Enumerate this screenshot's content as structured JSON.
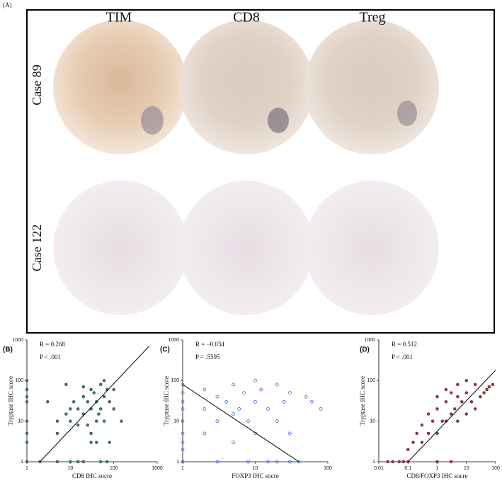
{
  "panel_a": {
    "label": "(A)",
    "columns": [
      "TIM",
      "CD8",
      "Treg"
    ],
    "rows": [
      "Case 89",
      "Case 122"
    ]
  },
  "chart_data": [
    {
      "type": "scatter",
      "panel_label": "(B)",
      "xlabel": "CD8 IHC socre",
      "ylabel": "Tryptase IHC score",
      "annotations": [
        "R = 0.268",
        "P < .001"
      ],
      "xscale": "log",
      "yscale": "log",
      "xlim": [
        1,
        1000
      ],
      "ylim": [
        1,
        1000
      ],
      "xticks": [
        1,
        10,
        100,
        1000
      ],
      "yticks": [
        1,
        10,
        100,
        1000
      ],
      "color": "#2e8b57",
      "filled": true,
      "x": [
        1,
        1,
        1,
        1,
        1,
        1,
        1,
        1,
        2,
        3,
        5,
        5,
        8,
        10,
        10,
        10,
        12,
        15,
        15,
        20,
        20,
        20,
        25,
        30,
        30,
        30,
        35,
        40,
        40,
        50,
        50,
        50,
        60,
        60,
        70,
        80,
        80,
        100,
        100,
        150,
        20,
        30,
        40,
        15,
        60,
        8,
        5,
        25,
        45,
        70
      ],
      "y": [
        100,
        60,
        30,
        10,
        5,
        3,
        1,
        40,
        1,
        30,
        10,
        5,
        15,
        1,
        20,
        10,
        30,
        8,
        20,
        1,
        15,
        40,
        30,
        3,
        20,
        60,
        50,
        10,
        30,
        1,
        20,
        80,
        40,
        100,
        60,
        3,
        30,
        20,
        60,
        10,
        70,
        5,
        3,
        1,
        10,
        80,
        1,
        8,
        15,
        1
      ],
      "trendline": {
        "x": [
          2,
          650
        ],
        "y": [
          1,
          700
        ]
      }
    },
    {
      "type": "scatter",
      "panel_label": "(C)",
      "xlabel": "FOXP3 IHC socre",
      "ylabel": "Tryptase IHC score",
      "annotations": [
        "R = −0.034",
        "P = .5595"
      ],
      "xscale": "log",
      "yscale": "log",
      "xlim": [
        1,
        100
      ],
      "ylim": [
        1,
        1000
      ],
      "xticks": [
        1,
        10,
        100
      ],
      "yticks": [
        1,
        10,
        100,
        1000
      ],
      "color": "#4169e1",
      "filled": false,
      "x": [
        1,
        1,
        1,
        1,
        1,
        1,
        1,
        1,
        1,
        2,
        2,
        2,
        3,
        3,
        3,
        4,
        5,
        5,
        5,
        6,
        7,
        8,
        8,
        10,
        10,
        10,
        12,
        15,
        15,
        20,
        20,
        20,
        25,
        30,
        30,
        30,
        40,
        50,
        60,
        80
      ],
      "y": [
        80,
        50,
        30,
        20,
        10,
        5,
        3,
        2,
        1,
        60,
        20,
        5,
        40,
        10,
        1,
        30,
        80,
        15,
        3,
        20,
        50,
        10,
        1,
        100,
        30,
        5,
        60,
        20,
        1,
        80,
        10,
        1,
        30,
        50,
        5,
        1,
        1,
        40,
        30,
        20
      ],
      "trendline": {
        "x": [
          1,
          40
        ],
        "y": [
          80,
          1
        ]
      }
    },
    {
      "type": "scatter",
      "panel_label": "(D)",
      "xlabel": "CD8/FOXP3 IHC socre",
      "ylabel": "Tryptase IHC score",
      "annotations": [
        "R = 0.512",
        "P < .001"
      ],
      "xscale": "log",
      "yscale": "log",
      "xlim": [
        0.01,
        100
      ],
      "ylim": [
        1,
        1000
      ],
      "xticks": [
        0.01,
        0.1,
        1,
        10,
        100
      ],
      "yticks": [
        1,
        10,
        100,
        1000
      ],
      "color": "#b03040",
      "filled": true,
      "x": [
        0.05,
        0.07,
        0.1,
        0.1,
        0.15,
        0.2,
        0.3,
        0.3,
        0.5,
        0.5,
        0.7,
        1,
        1,
        1,
        1.5,
        2,
        2,
        2,
        3,
        3,
        4,
        5,
        5,
        5,
        7,
        10,
        10,
        10,
        15,
        20,
        20,
        30,
        40,
        50,
        60,
        80,
        0.02,
        0.03,
        1,
        3
      ],
      "y": [
        1,
        1,
        1,
        2,
        3,
        5,
        3,
        8,
        5,
        15,
        10,
        5,
        20,
        40,
        10,
        10,
        30,
        60,
        15,
        50,
        20,
        10,
        40,
        80,
        30,
        15,
        50,
        100,
        30,
        20,
        80,
        40,
        50,
        60,
        70,
        80,
        1,
        1,
        1,
        1
      ],
      "trendline": {
        "x": [
          0.1,
          100
        ],
        "y": [
          1,
          180
        ]
      }
    }
  ]
}
